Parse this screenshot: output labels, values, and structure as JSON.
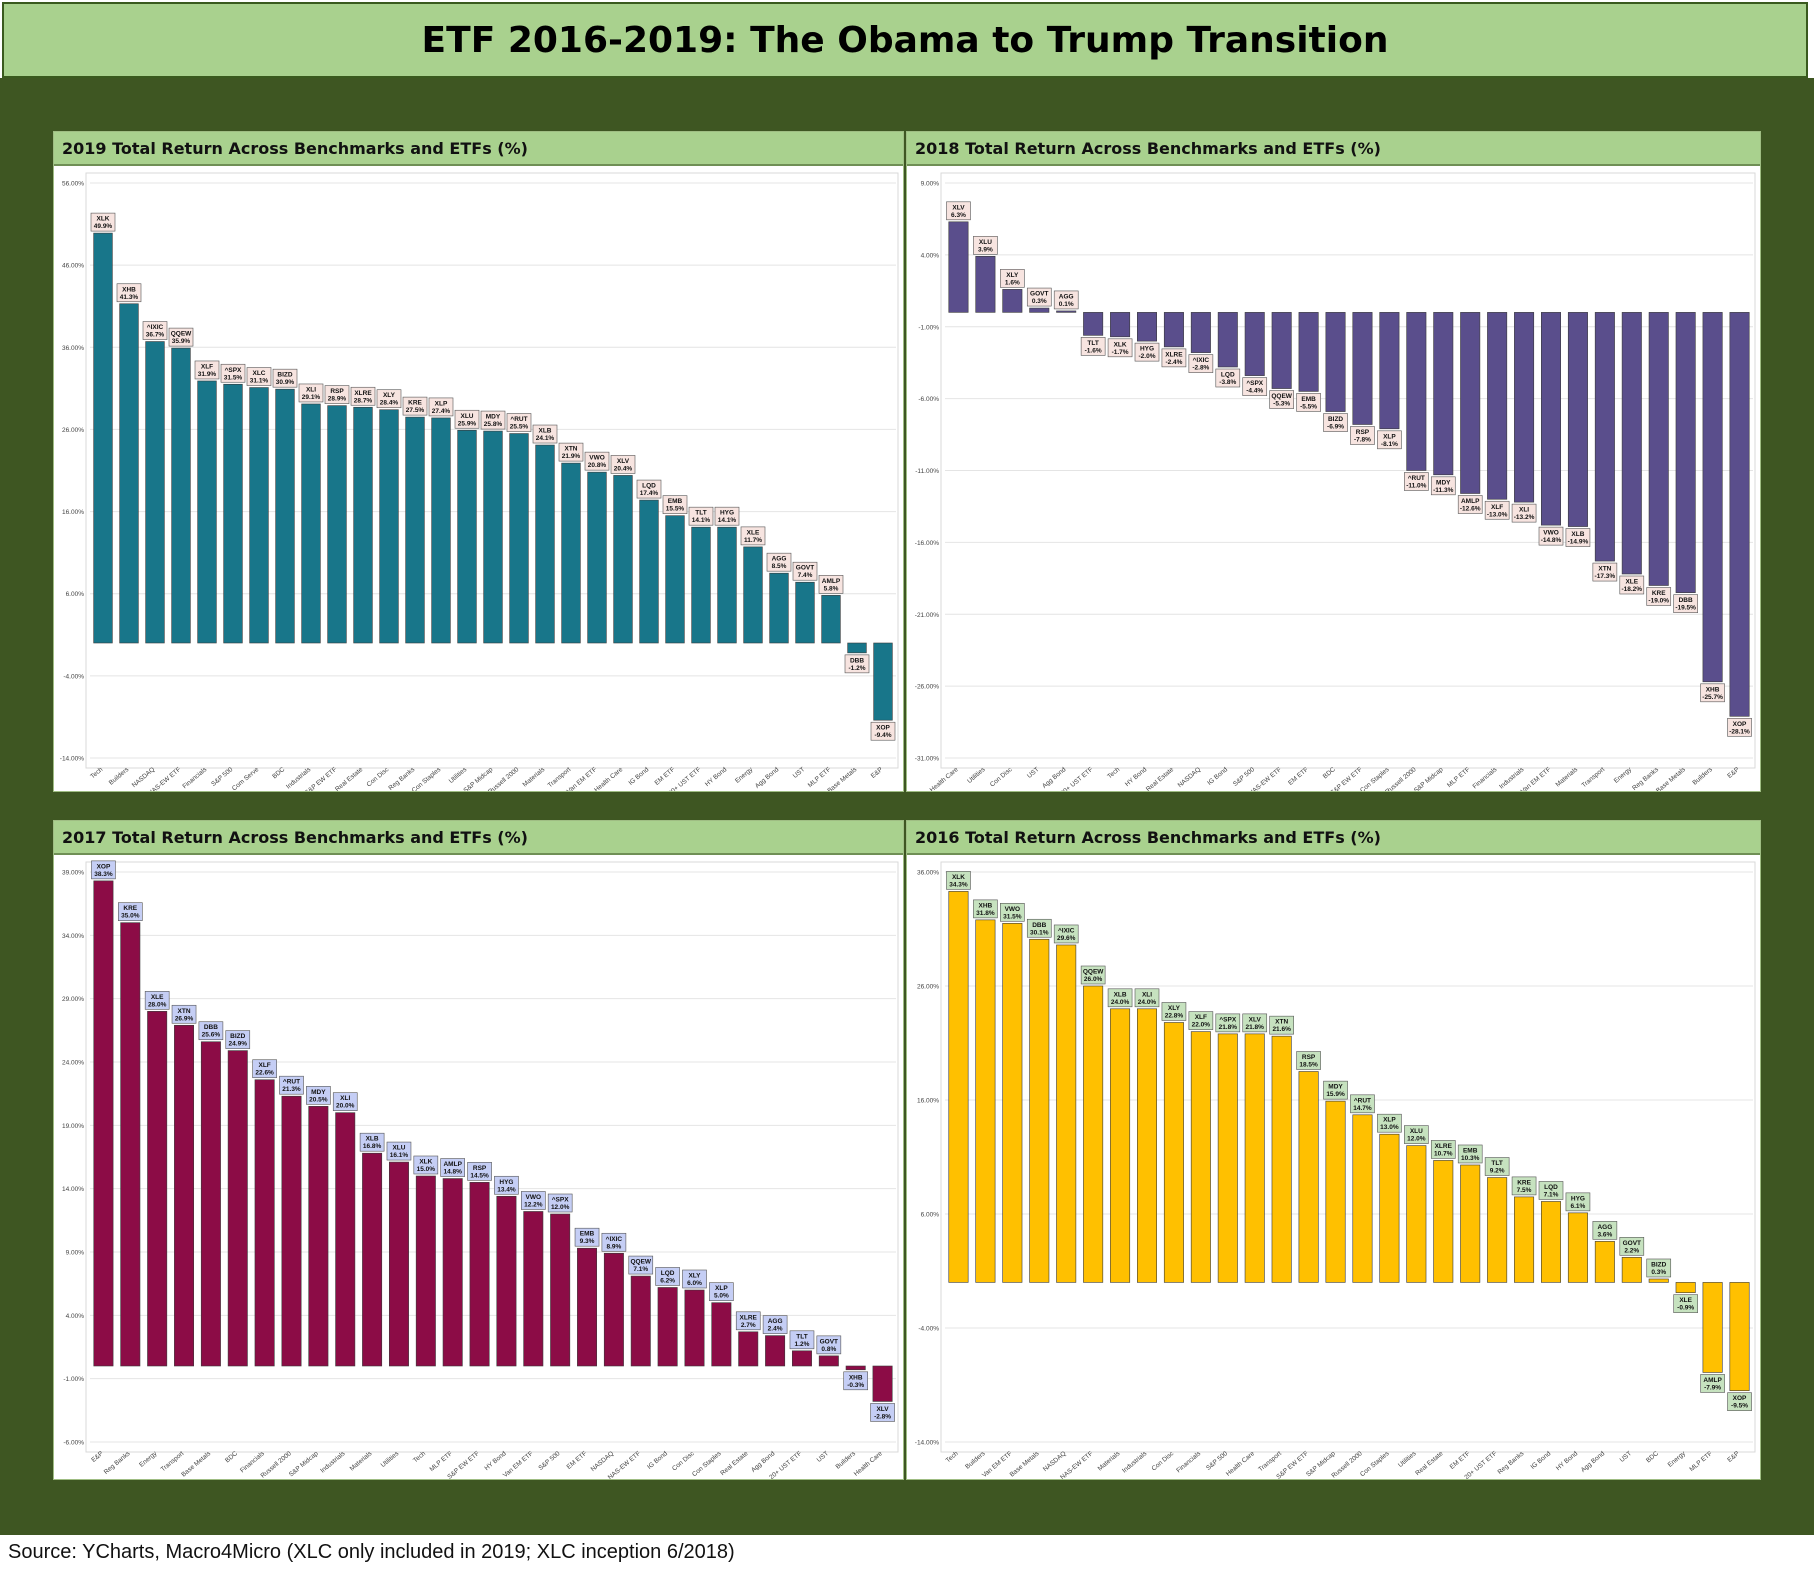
{
  "title": "ETF 2016-2019: The Obama to Trump Transition",
  "source": "Source: YCharts, Macro4Micro (XLC only included in 2019; XLC inception 6/2018)",
  "chart_data": [
    {
      "type": "bar",
      "title": "2019 Total Return Across Benchmarks and ETFs (%)",
      "ylim": [
        -14,
        56
      ],
      "yticks": [
        56,
        46,
        36,
        26,
        16,
        6,
        -4,
        -14
      ],
      "bar_color": "#18768a",
      "label_bg": "#f7e4e0",
      "categories": [
        "Tech",
        "Builders",
        "NASDAQ",
        "NAS-EW ETF",
        "Financials",
        "S&P 500",
        "Com Serve",
        "BDC",
        "Industrials",
        "S&P EW ETF",
        "Real Estate",
        "Con Disc",
        "Reg Banks",
        "Con Staples",
        "Utilities",
        "S&P Midcap",
        "Russell 2000",
        "Materials",
        "Transport",
        "Van EM ETF",
        "Health Care",
        "IG Bond",
        "EM ETF",
        "20+ UST ETF",
        "HY Bond",
        "Energy",
        "Agg Bond",
        "UST",
        "MLP ETF",
        "Base Metals",
        "E&P"
      ],
      "tickers": [
        "XLK",
        "XHB",
        "^IXIC",
        "QQEW",
        "XLF",
        "^SPX",
        "XLC",
        "BIZD",
        "XLI",
        "RSP",
        "XLRE",
        "XLY",
        "KRE",
        "XLP",
        "XLU",
        "MDY",
        "^RUT",
        "XLB",
        "XTN",
        "VWO",
        "XLV",
        "LQD",
        "EMB",
        "TLT",
        "HYG",
        "XLE",
        "AGG",
        "GOVT",
        "AMLP",
        "DBB",
        "XOP"
      ],
      "values": [
        49.9,
        41.3,
        36.7,
        35.9,
        31.9,
        31.5,
        31.1,
        30.9,
        29.1,
        28.9,
        28.7,
        28.4,
        27.5,
        27.4,
        25.9,
        25.8,
        25.5,
        24.1,
        21.9,
        20.8,
        20.4,
        17.4,
        15.5,
        14.1,
        14.1,
        11.7,
        8.5,
        7.4,
        5.8,
        -1.2,
        -9.4
      ],
      "value_labels": [
        "49.9%",
        "41.3%",
        "36.7%",
        "35.9%",
        "31.9%",
        "31.5%",
        "31.1%",
        "30.9%",
        "29.1%",
        "28.9%",
        "28.7%",
        "28.4%",
        "27.5%",
        "27.4%",
        "25.9%",
        "25.8%",
        "25.5%",
        "24.1%",
        "21.9%",
        "20.8%",
        "20.4%",
        "17.4%",
        "15.5%",
        "14.1%",
        "14.1%",
        "11.7%",
        "8.5%",
        "7.4%",
        "5.8%",
        "-1.2%",
        "-9.4%"
      ]
    },
    {
      "type": "bar",
      "title": "2018 Total Return Across Benchmarks and ETFs (%)",
      "ylim": [
        -31,
        9
      ],
      "yticks": [
        9,
        4,
        -1,
        -6,
        -11,
        -16,
        -21,
        -26,
        -31
      ],
      "bar_color": "#5a4e8c",
      "label_bg": "#f7e4e0",
      "categories": [
        "Health Care",
        "Utilities",
        "Con Disc",
        "UST",
        "Agg Bond",
        "20+ UST ETF",
        "Tech",
        "HY Bond",
        "Real Estate",
        "NASDAQ",
        "IG Bond",
        "S&P 500",
        "NAS-EW ETF",
        "EM ETF",
        "BDC",
        "S&P EW ETF",
        "Con Staples",
        "Russell 2000",
        "S&P Midcap",
        "MLP ETF",
        "Financials",
        "Industrials",
        "Van EM ETF",
        "Materials",
        "Transport",
        "Energy",
        "Reg Banks",
        "Base Metals",
        "Builders",
        "E&P"
      ],
      "tickers": [
        "XLV",
        "XLU",
        "XLY",
        "GOVT",
        "AGG",
        "TLT",
        "XLK",
        "HYG",
        "XLRE",
        "^IXIC",
        "LQD",
        "^SPX",
        "QQEW",
        "EMB",
        "BIZD",
        "RSP",
        "XLP",
        "^RUT",
        "MDY",
        "AMLP",
        "XLF",
        "XLI",
        "VWO",
        "XLB",
        "XTN",
        "XLE",
        "KRE",
        "DBB",
        "XHB",
        "XOP"
      ],
      "values": [
        6.3,
        3.9,
        1.6,
        0.3,
        0.1,
        -1.6,
        -1.7,
        -2.0,
        -2.4,
        -2.8,
        -3.8,
        -4.4,
        -5.3,
        -5.5,
        -6.9,
        -7.8,
        -8.1,
        -11.0,
        -11.3,
        -12.6,
        -13.0,
        -13.2,
        -14.8,
        -14.9,
        -17.3,
        -18.2,
        -19.0,
        -19.5,
        -25.7,
        -28.1
      ],
      "value_labels": [
        "6.3%",
        "3.9%",
        "1.6%",
        "0.3%",
        "0.1%",
        "-1.6%",
        "-1.7%",
        "-2.0%",
        "-2.4%",
        "-2.8%",
        "-3.8%",
        "-4.4%",
        "-5.3%",
        "-5.5%",
        "-6.9%",
        "-7.8%",
        "-8.1%",
        "-11.0%",
        "-11.3%",
        "-12.6%",
        "-13.0%",
        "-13.2%",
        "-14.8%",
        "-14.9%",
        "-17.3%",
        "-18.2%",
        "-19.0%",
        "-19.5%",
        "-25.7%",
        "-28.1%"
      ]
    },
    {
      "type": "bar",
      "title": "2017 Total Return Across Benchmarks and ETFs (%)",
      "ylim": [
        -6,
        39
      ],
      "yticks": [
        39,
        34,
        29,
        24,
        19,
        14,
        9,
        4,
        -1,
        -6
      ],
      "bar_color": "#8c0c46",
      "label_bg": "#c5cef5",
      "categories": [
        "E&P",
        "Reg Banks",
        "Energy",
        "Transport",
        "Base Metals",
        "BDC",
        "Financials",
        "Russell 2000",
        "S&P Midcap",
        "Industrials",
        "Materials",
        "Utilities",
        "Tech",
        "MLP ETF",
        "S&P EW ETF",
        "HY Bond",
        "Van EM ETF",
        "S&P 500",
        "EM ETF",
        "NASDAQ",
        "NAS-EW ETF",
        "IG Bond",
        "Con Disc",
        "Con Staples",
        "Real Estate",
        "Agg Bond",
        "20+ UST ETF",
        "UST",
        "Builders",
        "Health Care"
      ],
      "tickers": [
        "XOP",
        "KRE",
        "XLE",
        "XTN",
        "DBB",
        "BIZD",
        "XLF",
        "^RUT",
        "MDY",
        "XLI",
        "XLB",
        "XLU",
        "XLK",
        "AMLP",
        "RSP",
        "HYG",
        "VWO",
        "^SPX",
        "EMB",
        "^IXIC",
        "QQEW",
        "LQD",
        "XLY",
        "XLP",
        "XLRE",
        "AGG",
        "TLT",
        "GOVT",
        "XHB",
        "XLV"
      ],
      "values": [
        38.3,
        35.0,
        28.0,
        26.9,
        25.6,
        24.9,
        22.6,
        21.3,
        20.5,
        20.0,
        16.8,
        16.1,
        15.0,
        14.8,
        14.5,
        13.4,
        12.2,
        12.0,
        9.3,
        8.9,
        7.1,
        6.2,
        6.0,
        5.0,
        2.7,
        2.4,
        1.2,
        0.8,
        -0.3,
        -2.8
      ],
      "value_labels": [
        "38.3%",
        "35.0%",
        "28.0%",
        "26.9%",
        "25.6%",
        "24.9%",
        "22.6%",
        "21.3%",
        "20.5%",
        "20.0%",
        "16.8%",
        "16.1%",
        "15.0%",
        "14.8%",
        "14.5%",
        "13.4%",
        "12.2%",
        "12.0%",
        "9.3%",
        "8.9%",
        "7.1%",
        "6.2%",
        "6.0%",
        "5.0%",
        "2.7%",
        "2.4%",
        "1.2%",
        "0.8%",
        "-0.3%",
        "-2.8%"
      ]
    },
    {
      "type": "bar",
      "title": "2016 Total Return Across Benchmarks and ETFs (%)",
      "ylim": [
        -14,
        36
      ],
      "yticks": [
        36,
        26,
        16,
        6,
        -4,
        -14
      ],
      "bar_color": "#ffc000",
      "label_bg": "#c6e2bf",
      "categories": [
        "Tech",
        "Builders",
        "Van EM ETF",
        "Base Metals",
        "NASDAQ",
        "NAS-EW ETF",
        "Materials",
        "Industrials",
        "Con Disc",
        "Financials",
        "S&P 500",
        "Health Care",
        "Transport",
        "S&P EW ETF",
        "S&P Midcap",
        "Russell 2000",
        "Con Staples",
        "Utilities",
        "Real Estate",
        "EM ETF",
        "20+ UST ETF",
        "Reg Banks",
        "IG Bond",
        "HY Bond",
        "Agg Bond",
        "UST",
        "BDC",
        "Energy",
        "MLP ETF",
        "E&P"
      ],
      "tickers": [
        "XLK",
        "XHB",
        "VWO",
        "DBB",
        "^IXIC",
        "QQEW",
        "XLB",
        "XLI",
        "XLY",
        "XLF",
        "^SPX",
        "XLV",
        "XTN",
        "RSP",
        "MDY",
        "^RUT",
        "XLP",
        "XLU",
        "XLRE",
        "EMB",
        "TLT",
        "KRE",
        "LQD",
        "HYG",
        "AGG",
        "GOVT",
        "BIZD",
        "XLE",
        "AMLP",
        "XOP"
      ],
      "values": [
        34.3,
        31.8,
        31.5,
        30.1,
        29.6,
        26.0,
        24.0,
        24.0,
        22.8,
        22.0,
        21.8,
        21.8,
        21.6,
        18.5,
        15.9,
        14.7,
        13.0,
        12.0,
        10.7,
        10.3,
        9.2,
        7.5,
        7.1,
        6.1,
        3.6,
        2.2,
        0.3,
        -0.9,
        -7.9,
        -9.5
      ],
      "value_labels": [
        "34.3%",
        "31.8%",
        "31.5%",
        "30.1%",
        "29.6%",
        "26.0%",
        "24.0%",
        "24.0%",
        "22.8%",
        "22.0%",
        "21.8%",
        "21.8%",
        "21.6%",
        "18.5%",
        "15.9%",
        "14.7%",
        "13.0%",
        "12.0%",
        "10.7%",
        "10.3%",
        "9.2%",
        "7.5%",
        "7.1%",
        "6.1%",
        "3.6%",
        "2.2%",
        "0.3%",
        "-0.9%",
        "-7.9%",
        "-9.5%"
      ]
    }
  ]
}
